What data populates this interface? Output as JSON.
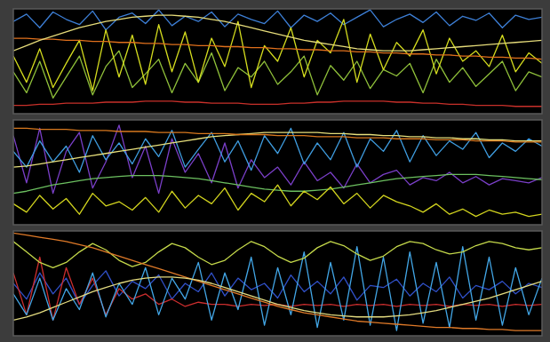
{
  "chart_data": [
    {
      "type": "line",
      "tick_labels": false,
      "xlim": [
        0,
        100
      ],
      "ylim": [
        0,
        100
      ],
      "x": [
        0,
        2.5,
        5,
        7.5,
        10,
        12.5,
        15,
        17.5,
        20,
        22.5,
        25,
        27.5,
        30,
        32.5,
        35,
        37.5,
        40,
        42.5,
        45,
        47.5,
        50,
        52.5,
        55,
        57.5,
        60,
        62.5,
        65,
        67.5,
        70,
        72.5,
        75,
        77.5,
        80,
        82.5,
        85,
        87.5,
        90,
        92.5,
        95,
        97.5,
        100
      ],
      "series": [
        {
          "color": "#c8302a",
          "values": [
            8,
            8,
            9,
            9,
            10,
            10,
            10,
            11,
            11,
            11,
            12,
            12,
            12,
            11,
            11,
            10,
            10,
            10,
            9,
            9,
            9,
            10,
            10,
            11,
            11,
            12,
            12,
            12,
            12,
            11,
            11,
            10,
            10,
            9,
            9,
            8,
            8,
            8,
            7,
            7,
            7
          ]
        },
        {
          "color": "#3d7fd6",
          "values": [
            88,
            95,
            82,
            97,
            90,
            85,
            98,
            80,
            92,
            96,
            86,
            99,
            84,
            93,
            88,
            97,
            83,
            95,
            90,
            86,
            98,
            82,
            94,
            88,
            96,
            85,
            92,
            99,
            83,
            90,
            95,
            87,
            97,
            84,
            93,
            89,
            96,
            82,
            94,
            90,
            92
          ]
        },
        {
          "color": "#8fc03a",
          "values": [
            40,
            20,
            50,
            15,
            35,
            55,
            18,
            45,
            60,
            25,
            38,
            52,
            20,
            48,
            30,
            58,
            22,
            44,
            35,
            50,
            28,
            40,
            55,
            18,
            46,
            32,
            50,
            24,
            42,
            36,
            48,
            20,
            52,
            30,
            44,
            26,
            38,
            50,
            22,
            40,
            35
          ]
        },
        {
          "color": "#d4dc1e",
          "values": [
            55,
            30,
            62,
            25,
            48,
            70,
            22,
            80,
            35,
            75,
            28,
            85,
            40,
            78,
            30,
            72,
            45,
            88,
            25,
            65,
            50,
            82,
            35,
            70,
            58,
            90,
            30,
            76,
            42,
            68,
            55,
            80,
            38,
            72,
            50,
            60,
            45,
            75,
            40,
            58,
            48
          ]
        },
        {
          "color": "#e0701c",
          "values": [
            72,
            72,
            71,
            71,
            70,
            70,
            69,
            69,
            68,
            68,
            67,
            67,
            66,
            66,
            65,
            65,
            64,
            64,
            63,
            63,
            62,
            62,
            61,
            61,
            60,
            60,
            59,
            59,
            58,
            58,
            57,
            57,
            56,
            56,
            55,
            55,
            54,
            54,
            53,
            53,
            52
          ]
        },
        {
          "color": "#e6dc7a",
          "values": [
            60,
            65,
            70,
            74,
            78,
            82,
            85,
            88,
            90,
            92,
            93,
            94,
            94,
            93,
            92,
            90,
            88,
            85,
            82,
            79,
            76,
            73,
            70,
            68,
            66,
            64,
            62,
            61,
            60,
            60,
            60,
            61,
            62,
            63,
            64,
            65,
            66,
            67,
            68,
            69,
            70
          ]
        }
      ]
    },
    {
      "type": "line",
      "tick_labels": false,
      "xlim": [
        0,
        100
      ],
      "ylim": [
        0,
        100
      ],
      "x": [
        0,
        2.5,
        5,
        7.5,
        10,
        12.5,
        15,
        17.5,
        20,
        22.5,
        25,
        27.5,
        30,
        32.5,
        35,
        37.5,
        40,
        42.5,
        45,
        47.5,
        50,
        52.5,
        55,
        57.5,
        60,
        62.5,
        65,
        67.5,
        70,
        72.5,
        75,
        77.5,
        80,
        82.5,
        85,
        87.5,
        90,
        92.5,
        95,
        97.5,
        100
      ],
      "series": [
        {
          "color": "#7a3fc8",
          "values": [
            85,
            40,
            92,
            30,
            70,
            88,
            35,
            60,
            95,
            45,
            75,
            30,
            82,
            50,
            68,
            40,
            78,
            35,
            62,
            45,
            55,
            38,
            60,
            42,
            50,
            35,
            58,
            40,
            48,
            52,
            38,
            45,
            42,
            50,
            40,
            46,
            38,
            44,
            42,
            40,
            45
          ]
        },
        {
          "color": "#3f9de0",
          "values": [
            70,
            55,
            80,
            60,
            75,
            50,
            85,
            62,
            78,
            58,
            82,
            65,
            90,
            55,
            72,
            88,
            60,
            80,
            52,
            85,
            68,
            92,
            58,
            78,
            62,
            88,
            55,
            82,
            70,
            90,
            60,
            85,
            66,
            80,
            72,
            88,
            64,
            78,
            70,
            82,
            75
          ]
        },
        {
          "color": "#6cc060",
          "values": [
            30,
            32,
            35,
            38,
            40,
            42,
            44,
            45,
            46,
            47,
            47,
            47,
            46,
            45,
            44,
            42,
            40,
            38,
            36,
            34,
            33,
            32,
            32,
            33,
            34,
            36,
            38,
            40,
            42,
            44,
            45,
            46,
            47,
            48,
            48,
            48,
            47,
            46,
            45,
            44,
            43
          ]
        },
        {
          "color": "#d2d41e",
          "values": [
            20,
            12,
            28,
            15,
            25,
            10,
            30,
            18,
            22,
            14,
            26,
            12,
            32,
            16,
            28,
            20,
            35,
            14,
            30,
            22,
            38,
            18,
            32,
            24,
            36,
            20,
            30,
            16,
            28,
            22,
            18,
            12,
            20,
            10,
            15,
            8,
            14,
            10,
            12,
            8,
            10
          ]
        },
        {
          "color": "#e8e07c",
          "values": [
            55,
            56,
            58,
            60,
            62,
            64,
            66,
            68,
            70,
            72,
            74,
            76,
            78,
            80,
            82,
            84,
            85,
            86,
            87,
            88,
            88,
            88,
            88,
            88,
            87,
            87,
            86,
            86,
            85,
            85,
            84,
            84,
            83,
            83,
            82,
            82,
            81,
            81,
            80,
            80,
            80
          ]
        },
        {
          "color": "#d8781e",
          "values": [
            92,
            92,
            91,
            91,
            91,
            90,
            90,
            90,
            89,
            89,
            89,
            88,
            88,
            88,
            87,
            87,
            87,
            86,
            86,
            86,
            85,
            85,
            85,
            84,
            84,
            84,
            83,
            83,
            83,
            82,
            82,
            82,
            81,
            81,
            81,
            80,
            80,
            80,
            79,
            79,
            79
          ]
        }
      ]
    },
    {
      "type": "line",
      "tick_labels": false,
      "xlim": [
        0,
        100
      ],
      "ylim": [
        0,
        100
      ],
      "x": [
        0,
        2.5,
        5,
        7.5,
        10,
        12.5,
        15,
        17.5,
        20,
        22.5,
        25,
        27.5,
        30,
        32.5,
        35,
        37.5,
        40,
        42.5,
        45,
        47.5,
        50,
        52.5,
        55,
        57.5,
        60,
        62.5,
        65,
        67.5,
        70,
        72.5,
        75,
        77.5,
        80,
        82.5,
        85,
        87.5,
        90,
        92.5,
        95,
        97.5,
        100
      ],
      "series": [
        {
          "color": "#3050c8",
          "values": [
            50,
            35,
            60,
            40,
            55,
            30,
            48,
            62,
            38,
            52,
            45,
            58,
            35,
            50,
            42,
            60,
            38,
            55,
            44,
            50,
            36,
            58,
            42,
            52,
            40,
            56,
            34,
            48,
            46,
            54,
            38,
            50,
            42,
            56,
            36,
            48,
            44,
            52,
            40,
            50,
            46
          ]
        },
        {
          "color": "#cc2e2e",
          "values": [
            60,
            20,
            75,
            15,
            65,
            30,
            55,
            20,
            45,
            35,
            40,
            30,
            35,
            28,
            32,
            30,
            30,
            28,
            30,
            29,
            30,
            28,
            30,
            29,
            30,
            28,
            30,
            29,
            30,
            28,
            30,
            29,
            30,
            28,
            30,
            29,
            30,
            28,
            30,
            29,
            30
          ]
        },
        {
          "color": "#42a6e6",
          "values": [
            40,
            20,
            55,
            15,
            45,
            25,
            60,
            18,
            50,
            30,
            65,
            20,
            55,
            35,
            70,
            15,
            60,
            25,
            75,
            10,
            65,
            20,
            80,
            8,
            70,
            15,
            85,
            10,
            75,
            5,
            80,
            12,
            70,
            8,
            85,
            15,
            75,
            10,
            65,
            20,
            55
          ]
        },
        {
          "color": "#c4d84a",
          "values": [
            90,
            80,
            70,
            65,
            70,
            80,
            88,
            82,
            72,
            66,
            70,
            80,
            88,
            84,
            75,
            68,
            72,
            82,
            90,
            85,
            76,
            70,
            74,
            84,
            90,
            86,
            78,
            72,
            76,
            85,
            90,
            88,
            82,
            78,
            80,
            86,
            90,
            88,
            84,
            82,
            84
          ]
        },
        {
          "color": "#e07a28",
          "values": [
            98,
            96,
            94,
            92,
            90,
            87,
            84,
            80,
            76,
            72,
            68,
            64,
            60,
            56,
            52,
            48,
            44,
            40,
            36,
            32,
            28,
            25,
            22,
            20,
            18,
            16,
            14,
            13,
            12,
            11,
            10,
            9,
            8,
            8,
            7,
            7,
            6,
            6,
            5,
            5,
            5
          ]
        },
        {
          "color": "#e4dc80",
          "values": [
            15,
            18,
            22,
            27,
            32,
            37,
            42,
            46,
            50,
            53,
            55,
            56,
            56,
            55,
            53,
            50,
            46,
            42,
            38,
            34,
            30,
            27,
            24,
            22,
            20,
            19,
            18,
            18,
            18,
            19,
            20,
            22,
            24,
            27,
            30,
            33,
            36,
            40,
            44,
            48,
            52
          ]
        }
      ]
    }
  ]
}
